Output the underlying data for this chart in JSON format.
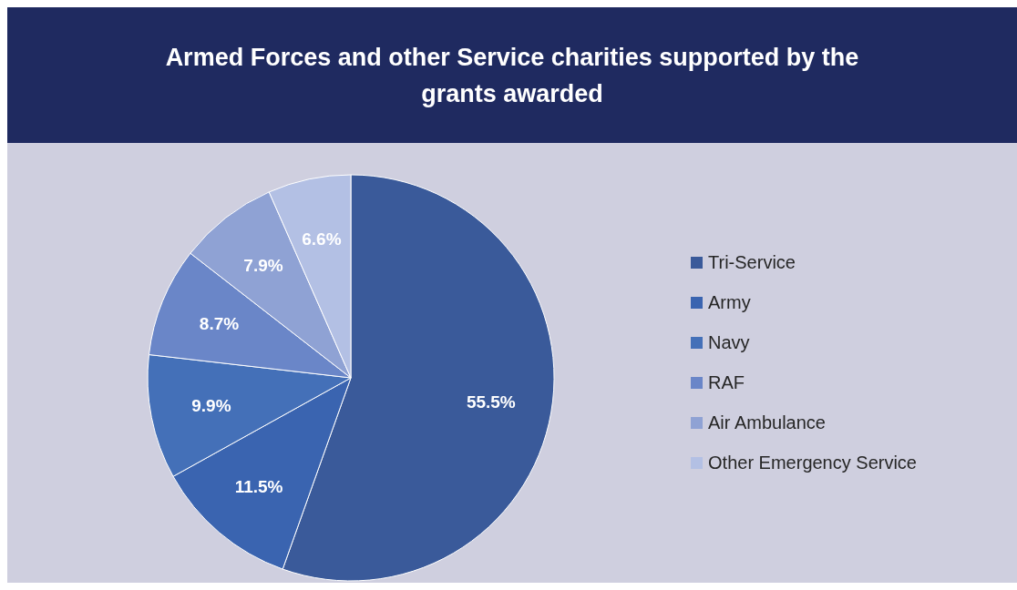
{
  "chart_data": {
    "type": "pie",
    "title": "Armed Forces and other Service charities supported by the grants awarded",
    "categories": [
      "Tri-Service",
      "Army",
      "Navy",
      "RAF",
      "Air Ambulance",
      "Other Emergency Service"
    ],
    "values": [
      55.5,
      11.5,
      9.9,
      8.7,
      7.9,
      6.6
    ],
    "value_labels": [
      "55.5%",
      "11.5%",
      "9.9%",
      "8.7%",
      "7.9%",
      "6.6%"
    ],
    "colors": [
      "#3a5a9a",
      "#3a64b0",
      "#4470b8",
      "#6a86c8",
      "#8fa2d4",
      "#b3c0e4"
    ],
    "legend": "right"
  }
}
